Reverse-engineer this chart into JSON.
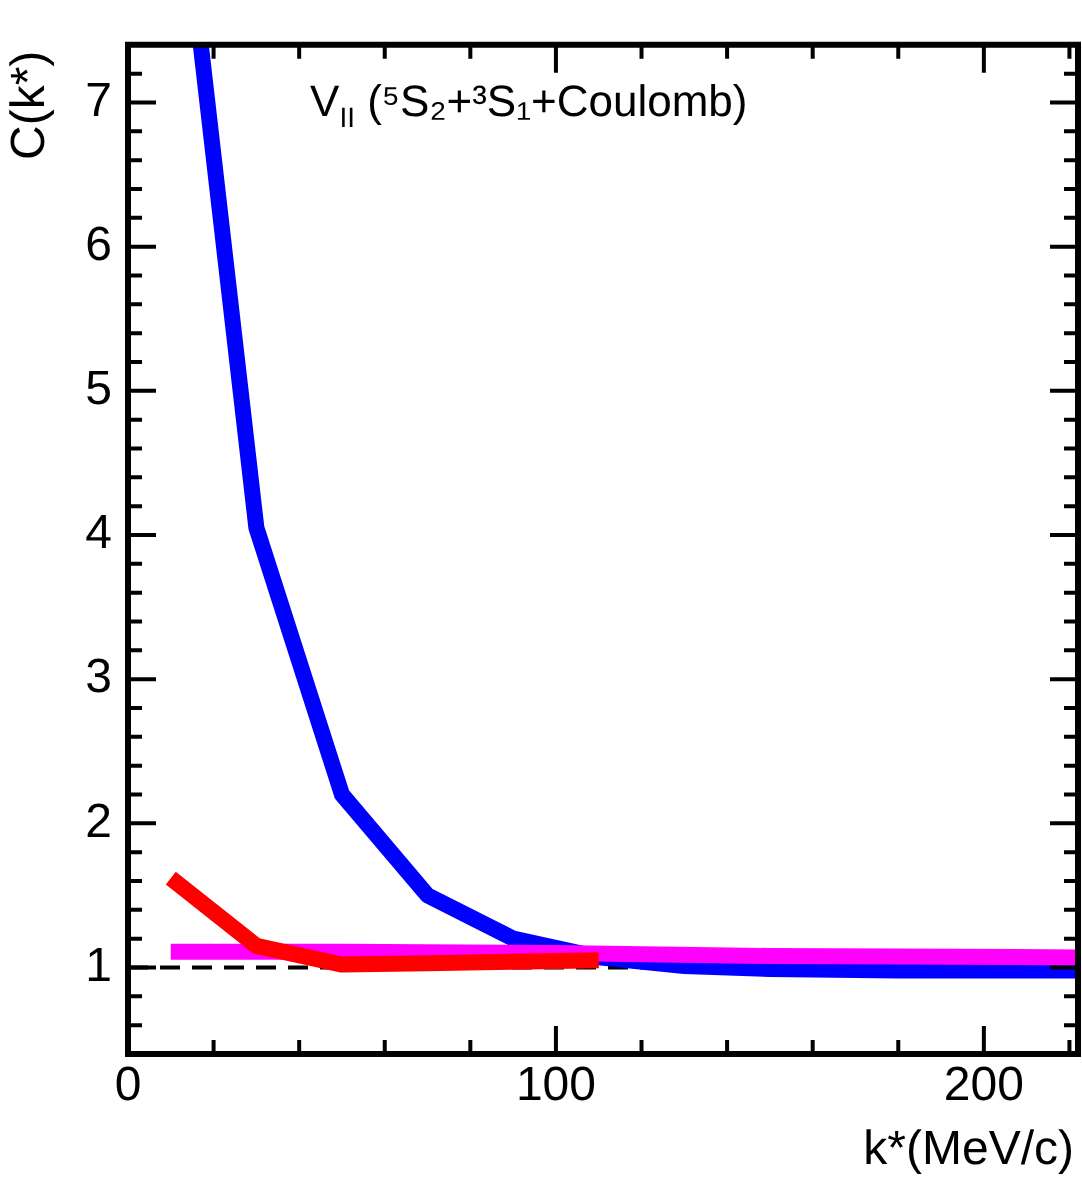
{
  "chart_data": {
    "type": "line",
    "annotations": [
      "V$_{II}$ (⁵S₂+³S₁+Coulomb)"
    ],
    "xlabel": "k*(MeV/c)",
    "ylabel": "C(k*)",
    "xlim": [
      0,
      222
    ],
    "ylim": [
      0.4,
      7.4
    ],
    "xticks": [
      0,
      {
        "value": 20,
        "label": null
      },
      {
        "value": 40,
        "label": null
      },
      {
        "value": 60,
        "label": null
      },
      {
        "value": 80,
        "label": null
      },
      100,
      {
        "value": 120,
        "label": null
      },
      {
        "value": 140,
        "label": null
      },
      {
        "value": 160,
        "label": null
      },
      {
        "value": 180,
        "label": null
      },
      200,
      {
        "value": 220,
        "label": null
      }
    ],
    "yticks": [
      {
        "value": 0.6,
        "label": null
      },
      {
        "value": 0.8,
        "label": null
      },
      1,
      {
        "value": 1.2,
        "label": null
      },
      {
        "value": 1.4,
        "label": null
      },
      {
        "value": 1.6,
        "label": null
      },
      {
        "value": 1.8,
        "label": null
      },
      2,
      {
        "value": 2.2,
        "label": null
      },
      {
        "value": 2.4,
        "label": null
      },
      {
        "value": 2.6,
        "label": null
      },
      {
        "value": 2.8,
        "label": null
      },
      3,
      {
        "value": 3.2,
        "label": null
      },
      {
        "value": 3.4,
        "label": null
      },
      {
        "value": 3.6,
        "label": null
      },
      {
        "value": 3.8,
        "label": null
      },
      4,
      {
        "value": 4.2,
        "label": null
      },
      {
        "value": 4.4,
        "label": null
      },
      {
        "value": 4.6,
        "label": null
      },
      {
        "value": 4.8,
        "label": null
      },
      5,
      {
        "value": 5.2,
        "label": null
      },
      {
        "value": 5.4,
        "label": null
      },
      {
        "value": 5.6,
        "label": null
      },
      {
        "value": 5.8,
        "label": null
      },
      6,
      {
        "value": 6.2,
        "label": null
      },
      {
        "value": 6.4,
        "label": null
      },
      {
        "value": 6.6,
        "label": null
      },
      {
        "value": 6.8,
        "label": null
      },
      7,
      {
        "value": 7.2,
        "label": null
      }
    ],
    "grid": false,
    "legend": false,
    "marker": "none",
    "line_style": "solid",
    "ref_lines": [
      {
        "axis": "y",
        "value": 1,
        "label": null,
        "color": "#000000",
        "line_style": "dashed"
      }
    ],
    "series": [
      {
        "color": "#ff0000",
        "x": [
          10,
          30,
          50,
          70,
          90,
          110
        ],
        "values": [
          1.62,
          1.15,
          1.02,
          1.03,
          1.04,
          1.05
        ]
      },
      {
        "color": "#ff00ff",
        "x": [
          10,
          50,
          100,
          150,
          222
        ],
        "values": [
          1.11,
          1.11,
          1.1,
          1.08,
          1.07
        ]
      },
      {
        "color": "#0000ff",
        "x": [
          17,
          30,
          50,
          70,
          90,
          110,
          130,
          150,
          180,
          222
        ],
        "values": [
          7.4,
          4.05,
          2.2,
          1.5,
          1.2,
          1.07,
          1.01,
          0.99,
          0.98,
          0.98
        ]
      }
    ]
  }
}
